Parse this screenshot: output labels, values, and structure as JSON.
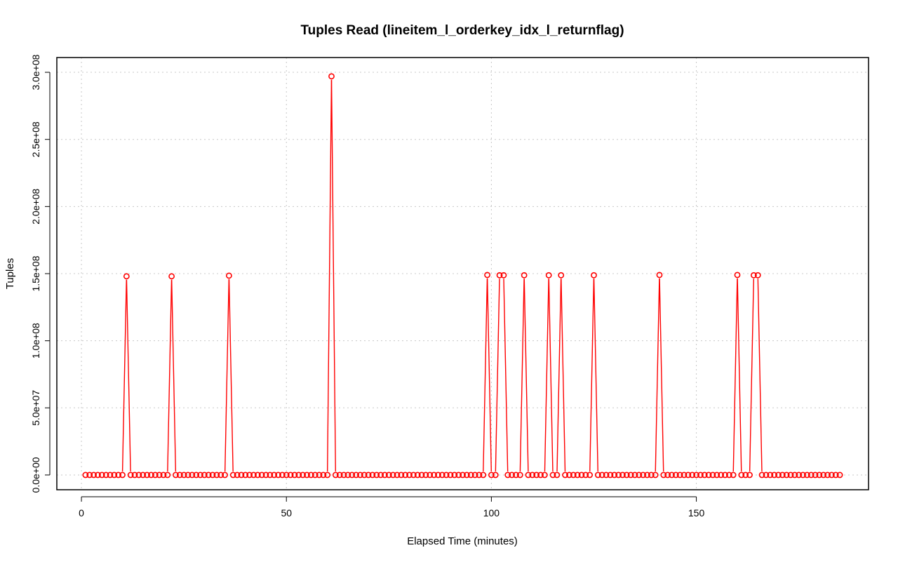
{
  "chart_data": {
    "type": "line",
    "title": "Tuples Read (lineitem_l_orderkey_idx_l_returnflag)",
    "xlabel": "Elapsed Time (minutes)",
    "ylabel": "Tuples",
    "xlim": [
      -6,
      192
    ],
    "ylim": [
      -11000000,
      311000000
    ],
    "x_ticks": [
      0,
      50,
      100,
      150
    ],
    "x_tick_labels": [
      "0",
      "50",
      "100",
      "150"
    ],
    "y_ticks": [
      0,
      50000000,
      100000000,
      150000000,
      200000000,
      250000000,
      300000000
    ],
    "y_tick_labels": [
      "0.0e+00",
      "5.0e+07",
      "1.0e+08",
      "1.5e+08",
      "2.0e+08",
      "2.5e+08",
      "3.0e+08"
    ],
    "grid": true,
    "line_color": "#ff0000",
    "marker": "open-circle",
    "x_range": [
      1,
      185
    ],
    "baseline_value": 0,
    "spikes": [
      {
        "x": 11,
        "y": 148000000
      },
      {
        "x": 22,
        "y": 148000000
      },
      {
        "x": 36,
        "y": 148500000
      },
      {
        "x": 61,
        "y": 297000000
      },
      {
        "x": 99,
        "y": 149000000
      },
      {
        "x": 102,
        "y": 148800000
      },
      {
        "x": 103,
        "y": 148800000
      },
      {
        "x": 108,
        "y": 148800000
      },
      {
        "x": 114,
        "y": 148800000
      },
      {
        "x": 117,
        "y": 148800000
      },
      {
        "x": 125,
        "y": 148800000
      },
      {
        "x": 141,
        "y": 149000000
      },
      {
        "x": 160,
        "y": 149000000
      },
      {
        "x": 164,
        "y": 148800000
      },
      {
        "x": 165,
        "y": 148800000
      }
    ]
  }
}
